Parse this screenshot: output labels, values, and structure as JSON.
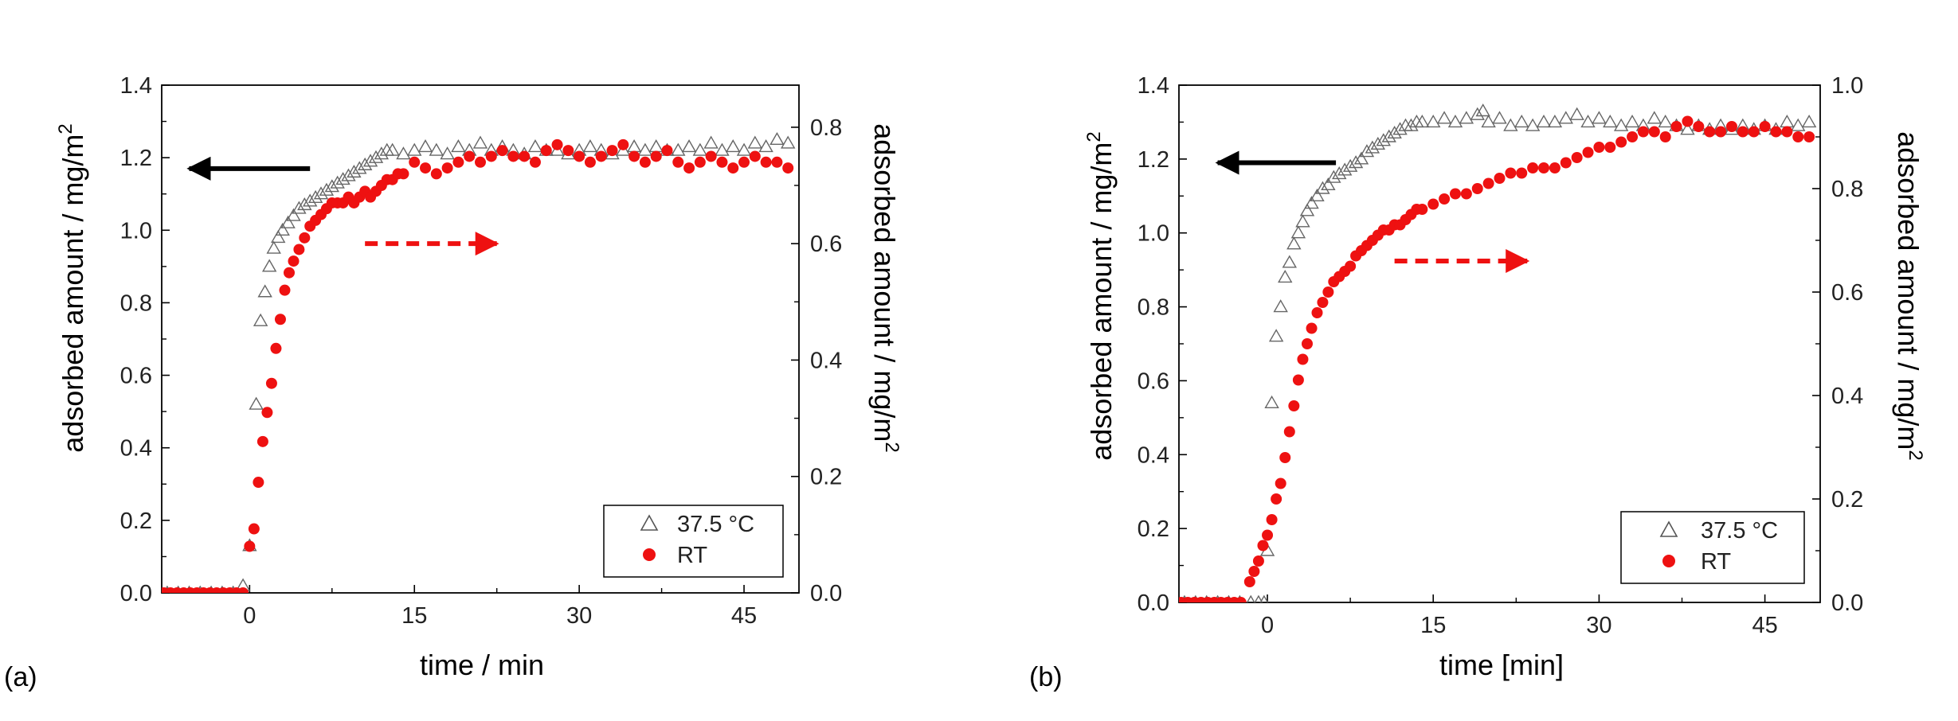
{
  "chart_data": [
    {
      "type": "scatter",
      "panel_label": "(a)",
      "xlabel": "time / min",
      "ylabel_left": "adsorbed amount / mg/m",
      "ylabel_right": "adsorbed amount / mg/m",
      "ylabel_superscript": "2",
      "xlim": [
        -8,
        50
      ],
      "ylim_left": [
        0,
        1.4
      ],
      "ylim_right": [
        0,
        0.8723
      ],
      "xticks": [
        "0",
        "15",
        "30",
        "45"
      ],
      "xtick_values": [
        0,
        15,
        30,
        45
      ],
      "yticks_left": [
        "0.0",
        "0.2",
        "0.4",
        "0.6",
        "0.8",
        "1.0",
        "1.2",
        "1.4"
      ],
      "ytick_values_left": [
        0,
        0.2,
        0.4,
        0.6,
        0.8,
        1.0,
        1.2,
        1.4
      ],
      "yticks_right": [
        "0.0",
        "0.2",
        "0.4",
        "0.6",
        "0.8"
      ],
      "ytick_values_right": [
        0,
        0.2,
        0.4,
        0.6,
        0.8
      ],
      "legend_position": "bottom-right",
      "annotations": [
        {
          "type": "arrow",
          "style": "solid",
          "color": "#000000",
          "from": [
            5.5,
            1.17
          ],
          "to": [
            -5.5,
            1.17
          ],
          "axis": "left",
          "meaning": "left axis"
        },
        {
          "type": "arrow",
          "style": "dashed",
          "color": "#ee1111",
          "from": [
            10.5,
            0.6
          ],
          "to": [
            22.5,
            0.6
          ],
          "axis": "right",
          "meaning": "right axis"
        }
      ],
      "series": [
        {
          "name": "37.5 °C",
          "marker": "open-triangle",
          "color": "#666666",
          "axis": "left",
          "x": [
            -7.5,
            -6.5,
            -5.5,
            -4.5,
            -3.5,
            -2.5,
            -1.5,
            -0.6,
            0.0,
            0.6,
            1.0,
            1.4,
            1.8,
            2.2,
            2.6,
            3.0,
            3.5,
            4.0,
            4.5,
            5.0,
            5.5,
            6.0,
            6.5,
            7.0,
            7.5,
            8.0,
            8.5,
            9.0,
            9.5,
            10.0,
            10.5,
            11.0,
            11.5,
            12.0,
            12.5,
            13.0,
            14.0,
            15.0,
            16.0,
            17.0,
            18.0,
            19.0,
            20.0,
            21.0,
            22.0,
            23.0,
            24.0,
            25.0,
            26.0,
            27.0,
            28.0,
            29.0,
            30.0,
            31.0,
            32.0,
            33.0,
            34.0,
            35.0,
            36.0,
            37.0,
            38.0,
            39.0,
            40.0,
            41.0,
            42.0,
            43.0,
            44.0,
            45.0,
            46.0,
            47.0,
            48.0,
            49.0
          ],
          "y": [
            0,
            0,
            0,
            0,
            0,
            0,
            0,
            0.02,
            0.13,
            0.52,
            0.75,
            0.83,
            0.9,
            0.95,
            0.98,
            1.0,
            1.02,
            1.04,
            1.06,
            1.07,
            1.08,
            1.09,
            1.1,
            1.11,
            1.12,
            1.13,
            1.14,
            1.15,
            1.16,
            1.17,
            1.18,
            1.19,
            1.2,
            1.21,
            1.22,
            1.22,
            1.21,
            1.22,
            1.23,
            1.22,
            1.21,
            1.23,
            1.22,
            1.24,
            1.22,
            1.23,
            1.22,
            1.21,
            1.23,
            1.22,
            1.22,
            1.21,
            1.22,
            1.23,
            1.22,
            1.21,
            1.22,
            1.23,
            1.22,
            1.23,
            1.22,
            1.22,
            1.23,
            1.22,
            1.24,
            1.22,
            1.23,
            1.22,
            1.24,
            1.23,
            1.25,
            1.24
          ]
        },
        {
          "name": "RT",
          "marker": "filled-circle",
          "color": "#ee1111",
          "axis": "right",
          "x": [
            -7.8,
            -7.2,
            -6.6,
            -6.0,
            -5.4,
            -4.8,
            -4.2,
            -3.6,
            -3.0,
            -2.4,
            -1.8,
            -1.2,
            -0.6,
            0.0,
            0.4,
            0.8,
            1.2,
            1.6,
            2.0,
            2.4,
            2.8,
            3.2,
            3.6,
            4.0,
            4.5,
            5.0,
            5.5,
            6.0,
            6.5,
            7.0,
            7.5,
            8.0,
            8.5,
            9.0,
            9.5,
            10.0,
            10.5,
            11.0,
            11.5,
            12.0,
            12.5,
            13.0,
            13.5,
            14.0,
            15.0,
            16.0,
            17.0,
            18.0,
            19.0,
            20.0,
            21.0,
            22.0,
            23.0,
            24.0,
            25.0,
            26.0,
            27.0,
            28.0,
            29.0,
            30.0,
            31.0,
            32.0,
            33.0,
            34.0,
            35.0,
            36.0,
            37.0,
            38.0,
            39.0,
            40.0,
            41.0,
            42.0,
            43.0,
            44.0,
            45.0,
            46.0,
            47.0,
            48.0,
            49.0
          ],
          "y": [
            0,
            0,
            0,
            0,
            0,
            0,
            0,
            0,
            0,
            0,
            0,
            0,
            0,
            0.08,
            0.11,
            0.19,
            0.26,
            0.31,
            0.36,
            0.42,
            0.47,
            0.52,
            0.55,
            0.57,
            0.59,
            0.61,
            0.63,
            0.64,
            0.65,
            0.66,
            0.67,
            0.67,
            0.67,
            0.68,
            0.67,
            0.68,
            0.69,
            0.68,
            0.69,
            0.7,
            0.71,
            0.71,
            0.72,
            0.72,
            0.74,
            0.73,
            0.72,
            0.73,
            0.74,
            0.75,
            0.74,
            0.75,
            0.76,
            0.75,
            0.75,
            0.74,
            0.76,
            0.77,
            0.76,
            0.75,
            0.74,
            0.75,
            0.76,
            0.77,
            0.75,
            0.74,
            0.75,
            0.76,
            0.74,
            0.73,
            0.74,
            0.75,
            0.74,
            0.73,
            0.74,
            0.75,
            0.74,
            0.74,
            0.73
          ]
        }
      ]
    },
    {
      "type": "scatter",
      "panel_label": "(b)",
      "xlabel": "time [min]",
      "ylabel_left": "adsorbed amount / mg/m",
      "ylabel_right": "adsorbed amount / mg/m",
      "ylabel_superscript": "2",
      "xlim": [
        -8,
        50
      ],
      "ylim_left": [
        0,
        1.4
      ],
      "ylim_right": [
        0,
        1.0
      ],
      "xticks": [
        "0",
        "15",
        "30",
        "45"
      ],
      "xtick_values": [
        0,
        15,
        30,
        45
      ],
      "yticks_left": [
        "0.0",
        "0.2",
        "0.4",
        "0.6",
        "0.8",
        "1.0",
        "1.2",
        "1.4"
      ],
      "ytick_values_left": [
        0,
        0.2,
        0.4,
        0.6,
        0.8,
        1.0,
        1.2,
        1.4
      ],
      "yticks_right": [
        "0.0",
        "0.2",
        "0.4",
        "0.6",
        "0.8",
        "1.0"
      ],
      "ytick_values_right": [
        0,
        0.2,
        0.4,
        0.6,
        0.8,
        1.0
      ],
      "legend_position": "bottom-right",
      "annotations": [
        {
          "type": "arrow",
          "style": "solid",
          "color": "#000000",
          "from": [
            6.2,
            1.19
          ],
          "to": [
            -4.5,
            1.19
          ],
          "axis": "left",
          "meaning": "left axis"
        },
        {
          "type": "arrow",
          "style": "dashed",
          "color": "#ee1111",
          "from": [
            11.5,
            0.66
          ],
          "to": [
            23.5,
            0.66
          ],
          "axis": "right",
          "meaning": "right axis"
        }
      ],
      "series": [
        {
          "name": "37.5 °C",
          "marker": "open-triangle",
          "color": "#666666",
          "axis": "left",
          "x": [
            -7.5,
            -6.5,
            -5.5,
            -4.5,
            -3.5,
            -2.5,
            -1.5,
            -0.8,
            -0.3,
            0.0,
            0.4,
            0.8,
            1.2,
            1.6,
            2.0,
            2.4,
            2.8,
            3.2,
            3.6,
            4.0,
            4.5,
            5.0,
            5.5,
            6.0,
            6.5,
            7.0,
            7.5,
            8.0,
            8.5,
            9.0,
            9.5,
            10.0,
            10.5,
            11.0,
            11.5,
            12.0,
            12.5,
            13.0,
            13.5,
            14.0,
            15.0,
            16.0,
            17.0,
            18.0,
            19.0,
            19.5,
            20.0,
            21.0,
            22.0,
            23.0,
            24.0,
            25.0,
            26.0,
            27.0,
            28.0,
            29.0,
            30.0,
            31.0,
            32.0,
            33.0,
            34.0,
            35.0,
            36.0,
            37.0,
            38.0,
            39.0,
            40.0,
            41.0,
            42.0,
            43.0,
            44.0,
            45.0,
            46.0,
            47.0,
            48.0,
            49.0
          ],
          "y": [
            0,
            0,
            0,
            0,
            0,
            0,
            0,
            0,
            0,
            0.14,
            0.54,
            0.72,
            0.8,
            0.88,
            0.92,
            0.97,
            1.0,
            1.03,
            1.06,
            1.08,
            1.1,
            1.12,
            1.13,
            1.15,
            1.16,
            1.17,
            1.18,
            1.19,
            1.2,
            1.22,
            1.23,
            1.24,
            1.25,
            1.26,
            1.27,
            1.28,
            1.29,
            1.29,
            1.3,
            1.3,
            1.3,
            1.31,
            1.3,
            1.31,
            1.32,
            1.33,
            1.3,
            1.31,
            1.29,
            1.3,
            1.29,
            1.3,
            1.3,
            1.31,
            1.32,
            1.3,
            1.31,
            1.3,
            1.29,
            1.3,
            1.29,
            1.31,
            1.3,
            1.29,
            1.28,
            1.29,
            1.28,
            1.29,
            1.28,
            1.29,
            1.28,
            1.29,
            1.28,
            1.3,
            1.29,
            1.3
          ]
        },
        {
          "name": "RT",
          "marker": "filled-circle",
          "color": "#ee1111",
          "axis": "right",
          "x": [
            -7.8,
            -7.2,
            -6.6,
            -6.0,
            -5.4,
            -4.8,
            -4.2,
            -3.6,
            -3.0,
            -2.4,
            -1.6,
            -1.2,
            -0.8,
            -0.4,
            0.0,
            0.4,
            0.8,
            1.2,
            1.6,
            2.0,
            2.4,
            2.8,
            3.2,
            3.6,
            4.0,
            4.5,
            5.0,
            5.5,
            6.0,
            6.5,
            7.0,
            7.5,
            8.0,
            8.5,
            9.0,
            9.5,
            10.0,
            10.5,
            11.0,
            11.5,
            12.0,
            12.5,
            13.0,
            13.5,
            14.0,
            15.0,
            16.0,
            17.0,
            18.0,
            19.0,
            20.0,
            21.0,
            22.0,
            23.0,
            24.0,
            25.0,
            26.0,
            27.0,
            28.0,
            29.0,
            30.0,
            31.0,
            32.0,
            33.0,
            34.0,
            35.0,
            36.0,
            37.0,
            38.0,
            39.0,
            40.0,
            41.0,
            42.0,
            43.0,
            44.0,
            45.0,
            46.0,
            47.0,
            48.0,
            49.0
          ],
          "y": [
            0,
            0,
            0,
            0,
            0,
            0,
            0,
            0,
            0,
            0,
            0.04,
            0.06,
            0.08,
            0.11,
            0.13,
            0.16,
            0.2,
            0.23,
            0.28,
            0.33,
            0.38,
            0.43,
            0.47,
            0.5,
            0.53,
            0.56,
            0.58,
            0.6,
            0.62,
            0.63,
            0.64,
            0.65,
            0.67,
            0.68,
            0.69,
            0.7,
            0.71,
            0.72,
            0.72,
            0.73,
            0.73,
            0.74,
            0.75,
            0.76,
            0.76,
            0.77,
            0.78,
            0.79,
            0.79,
            0.8,
            0.81,
            0.82,
            0.83,
            0.83,
            0.84,
            0.84,
            0.84,
            0.85,
            0.86,
            0.87,
            0.88,
            0.88,
            0.89,
            0.9,
            0.91,
            0.91,
            0.9,
            0.92,
            0.93,
            0.92,
            0.91,
            0.91,
            0.92,
            0.91,
            0.91,
            0.92,
            0.91,
            0.91,
            0.9,
            0.9
          ]
        }
      ]
    }
  ]
}
